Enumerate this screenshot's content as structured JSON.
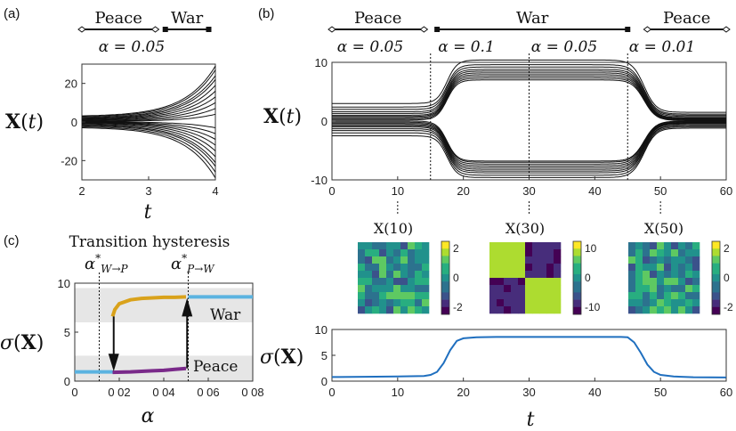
{
  "panels": {
    "a": {
      "label": "(a)",
      "eras": [
        {
          "name": "Peace",
          "from": 2,
          "to": 3.1,
          "left_end": "open",
          "right_end": "open"
        },
        {
          "name": "War",
          "from": 3.25,
          "to": 3.9,
          "left_end": "closed",
          "right_end": "closed"
        }
      ],
      "alpha_label": "α = 0.05"
    },
    "b": {
      "label": "(b)",
      "eras": [
        {
          "name": "Peace",
          "from": 0,
          "to": 14,
          "left_end": "open",
          "right_end": "open"
        },
        {
          "name": "War",
          "from": 16,
          "to": 45,
          "left_end": "closed",
          "right_end": "closed"
        },
        {
          "name": "Peace",
          "from": 48,
          "to": 60,
          "left_end": "open",
          "right_end": "open"
        }
      ],
      "alpha_labels": [
        "α = 0.05",
        "α = 0.1",
        "α = 0.05",
        "α = 0.01"
      ],
      "heatmaps": [
        {
          "title": "X(10)",
          "cb_ticks": [
            "2",
            "0",
            "-2"
          ]
        },
        {
          "title": "X(30)",
          "cb_ticks": [
            "10",
            "0",
            "-10"
          ]
        },
        {
          "title": "X(50)",
          "cb_ticks": [
            "2",
            "0",
            "-2"
          ]
        }
      ]
    },
    "c": {
      "label": "(c)",
      "title": "Transition hysteresis",
      "label_war": "War",
      "label_peace": "Peace",
      "alpha_wp": "α*W→P",
      "alpha_pw": "α*P→W"
    }
  },
  "colors": {
    "trajectory": "#111111",
    "sigma_line": "#1f6fbf",
    "hyst_war": "#d9a21b",
    "hyst_peace": "#7a2a8a",
    "hyst_blue": "#5bb3e0",
    "band": "#e6e6e6"
  },
  "chart_data": [
    {
      "id": "a",
      "type": "line",
      "title": "",
      "xlabel": "t",
      "ylabel": "X(t)",
      "xlim": [
        2,
        4
      ],
      "ylim": [
        -30,
        30
      ],
      "xticks": [
        2,
        3,
        4
      ],
      "yticks": [
        -20,
        0,
        20
      ],
      "series_description_count": 20,
      "start_values": [
        -3,
        -2.5,
        -2,
        -1.6,
        -1.2,
        -0.8,
        -0.5,
        -0.3,
        -0.1,
        0.1,
        0.3,
        0.5,
        0.8,
        1.1,
        1.4,
        1.7,
        2,
        2.4,
        2.8,
        3.2
      ],
      "end_values": [
        -29,
        -26,
        -23,
        -21,
        -18,
        -15,
        -12,
        -9,
        -6,
        -3,
        4,
        7,
        10,
        13,
        16,
        19,
        22,
        24,
        27,
        29
      ]
    },
    {
      "id": "b",
      "type": "line",
      "title": "",
      "xlabel": "",
      "ylabel": "X(t)",
      "xlim": [
        0,
        60
      ],
      "ylim": [
        -10,
        10
      ],
      "xticks": [
        0,
        10,
        20,
        30,
        40,
        50,
        60
      ],
      "yticks": [
        -10,
        0,
        10
      ],
      "transition_times": [
        15,
        30,
        45
      ],
      "peace_values": [
        -2.5,
        -2,
        -1.6,
        -1.3,
        -1,
        -0.8,
        -0.6,
        -0.4,
        -0.2,
        0,
        0.2,
        0.4,
        0.6,
        0.8,
        1,
        1.3,
        1.6,
        2,
        2.4,
        3
      ],
      "war_values": [
        -9.6,
        -9.2,
        -8.8,
        -8.5,
        -8.2,
        -7.9,
        -7.6,
        -7.3,
        -7,
        -6.8,
        7,
        7.3,
        7.6,
        7.9,
        8.2,
        8.5,
        8.8,
        9.2,
        9.6,
        10.4
      ],
      "after_values": [
        -1.2,
        -1,
        -0.8,
        -0.7,
        -0.5,
        -0.4,
        -0.3,
        -0.2,
        -0.1,
        0,
        0.1,
        0.2,
        0.3,
        0.4,
        0.5,
        0.6,
        0.8,
        1,
        1.2,
        1.5
      ]
    },
    {
      "id": "sigma",
      "type": "line",
      "title": "",
      "xlabel": "t",
      "ylabel": "σ(X)",
      "xlim": [
        0,
        60
      ],
      "ylim": [
        0,
        10
      ],
      "xticks": [
        0,
        10,
        20,
        30,
        40,
        50,
        60
      ],
      "yticks": [
        0,
        5,
        10
      ],
      "x": [
        0,
        5,
        10,
        14,
        15,
        16,
        17,
        18,
        19,
        20,
        22,
        25,
        30,
        35,
        40,
        44,
        45,
        46,
        47,
        48,
        49,
        50,
        52,
        55,
        60
      ],
      "y": [
        0.8,
        0.85,
        0.9,
        1.0,
        1.2,
        1.8,
        3.5,
        6.0,
        7.8,
        8.3,
        8.5,
        8.55,
        8.55,
        8.55,
        8.55,
        8.55,
        8.5,
        7.5,
        5.5,
        3.2,
        1.8,
        1.2,
        0.9,
        0.75,
        0.7
      ]
    },
    {
      "id": "c",
      "type": "line",
      "title": "Transition hysteresis",
      "xlabel": "α",
      "ylabel": "σ(X)",
      "xlim": [
        0,
        0.08
      ],
      "ylim": [
        0,
        10
      ],
      "xtick_labels": [
        "0",
        "0 02",
        "0 04",
        "0 06",
        "0 08"
      ],
      "xticks": [
        0,
        0.02,
        0.04,
        0.06,
        0.08
      ],
      "yticks": [
        0,
        5,
        10
      ],
      "alpha_W_to_P": 0.011,
      "alpha_P_to_W": 0.051,
      "upper_branch": {
        "x": [
          0.017,
          0.018,
          0.02,
          0.025,
          0.03,
          0.035,
          0.04,
          0.045,
          0.05
        ],
        "y": [
          6.6,
          7.3,
          7.9,
          8.3,
          8.45,
          8.5,
          8.55,
          8.55,
          8.6
        ]
      },
      "lower_branch": {
        "x": [
          0.017,
          0.025,
          0.03,
          0.035,
          0.04,
          0.045,
          0.05
        ],
        "y": [
          0.9,
          0.95,
          1.0,
          1.05,
          1.1,
          1.2,
          1.3
        ]
      },
      "left_blue": {
        "x": [
          0,
          0.017
        ],
        "y": [
          0.95,
          0.95
        ]
      },
      "right_blue": {
        "x": [
          0.051,
          0.08
        ],
        "y": [
          8.6,
          8.6
        ]
      },
      "bands": [
        [
          6,
          9.5
        ],
        [
          0,
          2.6
        ]
      ]
    }
  ]
}
